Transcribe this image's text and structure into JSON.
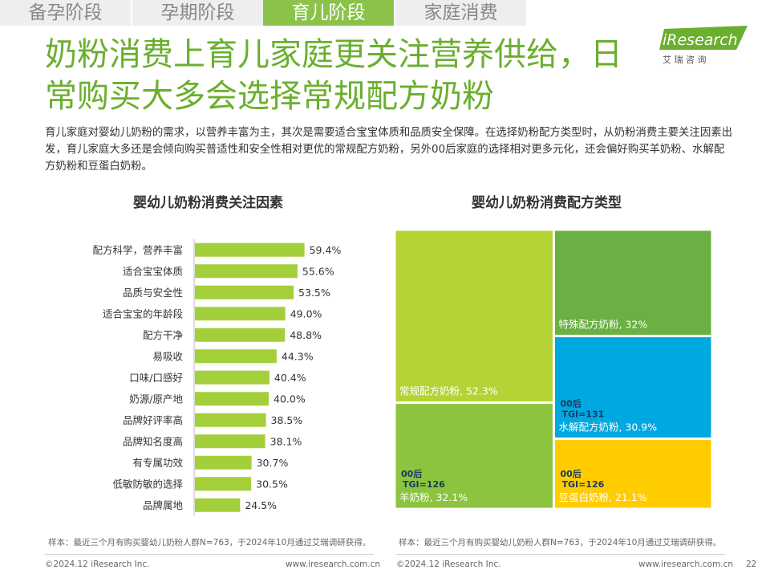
{
  "tabs": [
    {
      "label": "备孕阶段",
      "active": false
    },
    {
      "label": "孕期阶段",
      "active": false
    },
    {
      "label": "育儿阶段",
      "active": true
    },
    {
      "label": "家庭消费",
      "active": false
    }
  ],
  "headline": [
    "奶粉消费上育儿家庭更关注营养供给，日",
    "常购买大多会选择常规配方奶粉"
  ],
  "logo": {
    "brand": "iResearch",
    "sub": "艾 瑞 咨 询"
  },
  "intro": "育儿家庭对婴幼儿奶粉的需求，以营养丰富为主，其次是需要适合宝宝体质和品质安全保障。在选择奶粉配方类型时，从奶粉消费主要关注因素出发，育儿家庭大多还是会倾向购买普适性和安全性相对更优的常规配方奶粉，另外00后家庭的选择相对更多元化，还会偏好购买羊奶粉、水解配方奶粉和豆蛋白奶粉。",
  "colors": {
    "accent": "#6aaf2e",
    "bar": "#a3cf3a",
    "tab_active": "#8bc34a",
    "blue": "#00a8e1",
    "yellow": "#ffcc00",
    "green_dark": "#6ab042"
  },
  "chart_data": [
    {
      "type": "bar",
      "orientation": "horizontal",
      "title": "婴幼儿奶粉消费关注因素",
      "categories": [
        "配方科学，营养丰富",
        "适合宝宝体质",
        "品质与安全性",
        "适合宝宝的年龄段",
        "配方干净",
        "易吸收",
        "口味/口感好",
        "奶源/原产地",
        "品牌好评率高",
        "品牌知名度高",
        "有专属功效",
        "低敏防敏的选择",
        "品牌属地"
      ],
      "values": [
        59.4,
        55.6,
        53.5,
        49.0,
        48.8,
        44.3,
        40.4,
        40.0,
        38.5,
        38.1,
        30.7,
        30.5,
        24.5
      ],
      "labels": [
        "59.4%",
        "55.6%",
        "53.5%",
        "49.0%",
        "48.8%",
        "44.3%",
        "40.4%",
        "40.0%",
        "38.5%",
        "38.1%",
        "30.7%",
        "30.5%",
        "24.5%"
      ],
      "unit": "%",
      "xlim": [
        0,
        100
      ],
      "grid": false
    },
    {
      "type": "treemap",
      "title": "婴幼儿奶粉消费配方类型",
      "items": [
        {
          "name": "常规配方奶粉",
          "value": 52.3,
          "label": "常规配方奶粉, 52.3%",
          "color": "#b5d334",
          "tag": ""
        },
        {
          "name": "羊奶粉",
          "value": 32.1,
          "label": "羊奶粉, 32.1%",
          "color": "#8cc43f",
          "tag": "00后\nTGI=126"
        },
        {
          "name": "特殊配方奶粉",
          "value": 32,
          "label": "特殊配方奶粉, 32%",
          "color": "#6ab042",
          "tag": ""
        },
        {
          "name": "水解配方奶粉",
          "value": 30.9,
          "label": "水解配方奶粉, 30.9%",
          "color": "#00a8e1",
          "tag": "00后\nTGI=131"
        },
        {
          "name": "豆蛋白奶粉",
          "value": 21.1,
          "label": "豆蛋白奶粉, 21.1%",
          "color": "#ffcc00",
          "tag": "00后\nTGI=126"
        }
      ]
    }
  ],
  "notes": [
    "样本：最近三个月有购买婴幼儿奶粉人群N=763，于2024年10月通过艾瑞调研获得。",
    "样本：最近三个月有购买婴幼儿奶粉人群N=763，于2024年10月通过艾瑞调研获得。"
  ],
  "footer": {
    "copyright": "©2024.12 iResearch Inc.",
    "site": "www.iresearch.com.cn",
    "page": "22"
  }
}
